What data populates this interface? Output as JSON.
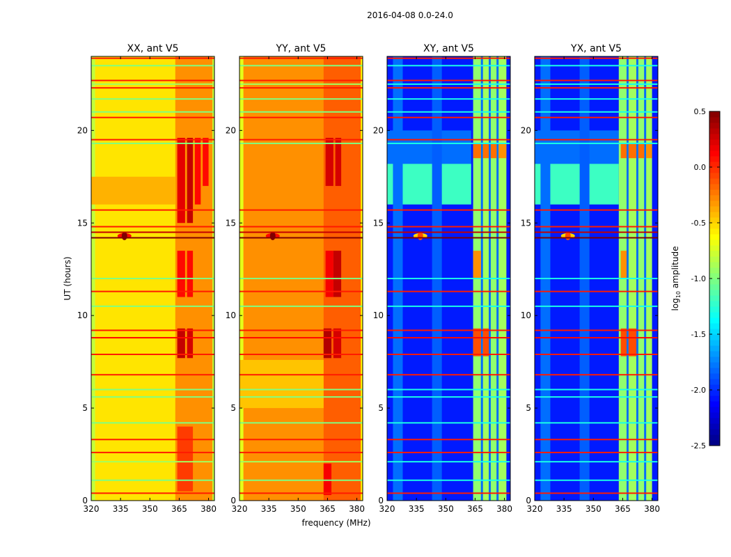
{
  "chart_data": {
    "type": "heatmap",
    "suptitle": "2016-04-08 0.0-24.0",
    "xlabel": "frequency (MHz)",
    "ylabel": "UT (hours)",
    "xlim": [
      320,
      383
    ],
    "ylim": [
      0,
      24
    ],
    "xticks": [
      320,
      335,
      350,
      365,
      380
    ],
    "yticks": [
      0,
      5,
      10,
      15,
      20
    ],
    "colorbar": {
      "label": "log10 amplitude",
      "label_main": "log",
      "label_sub": "10",
      "label_rest": " amplitude",
      "range": [
        -2.5,
        0.5
      ],
      "ticks": [
        "0.5",
        "0.0",
        "-0.5",
        "-1.0",
        "-1.5",
        "-2.0",
        "-2.5"
      ],
      "tick_values": [
        0.5,
        0.0,
        -0.5,
        -1.0,
        -1.5,
        -2.0,
        -2.5
      ],
      "colormap": "jet"
    },
    "panels": [
      {
        "title": "XX, ant V5",
        "base": -0.55,
        "patches": [
          [
            320,
            322,
            0,
            24,
            -0.8
          ],
          [
            381,
            383,
            0,
            24,
            -0.8
          ],
          [
            363,
            382,
            0,
            24,
            -0.3
          ],
          [
            364,
            368,
            7.7,
            9.3,
            0.3
          ],
          [
            369,
            372,
            7.7,
            9.3,
            0.25
          ],
          [
            364,
            368,
            11,
            13.5,
            0.1
          ],
          [
            369,
            372,
            11,
            13.5,
            0.1
          ],
          [
            364,
            368,
            15,
            19.6,
            0.2
          ],
          [
            369,
            372,
            15,
            19.6,
            0.3
          ],
          [
            373,
            376,
            16,
            19.6,
            0.1
          ],
          [
            377,
            380,
            17,
            19.6,
            0.1
          ],
          [
            320,
            363,
            16,
            17.5,
            -0.4
          ],
          [
            364,
            372,
            0.5,
            4,
            -0.05
          ]
        ],
        "blob": [
          337,
          14.3,
          0.5
        ]
      },
      {
        "title": "YY, ant V5",
        "base": -0.3,
        "patches": [
          [
            320,
            322,
            0,
            24,
            -0.7
          ],
          [
            381,
            383,
            0,
            24,
            -0.6
          ],
          [
            363,
            382,
            0,
            24,
            -0.15
          ],
          [
            363,
            367,
            7.7,
            9.3,
            0.35
          ],
          [
            368,
            372,
            7.7,
            9.3,
            0.25
          ],
          [
            364,
            368,
            11,
            13.5,
            0.15
          ],
          [
            368,
            372,
            11,
            13.5,
            0.3
          ],
          [
            364,
            368,
            17,
            19.6,
            0.25
          ],
          [
            369,
            372,
            17,
            19.6,
            0.25
          ],
          [
            363,
            367,
            0.3,
            2,
            0.15
          ],
          [
            320,
            363,
            5,
            7.6,
            -0.45
          ]
        ],
        "blob": [
          337,
          14.3,
          0.5
        ]
      },
      {
        "title": "XY, ant V5",
        "base": -2.05,
        "patches": [
          [
            320,
            363,
            16,
            18.2,
            -1.2
          ],
          [
            320,
            363,
            18.2,
            20,
            -1.8
          ],
          [
            364,
            368,
            0,
            24,
            -0.95
          ],
          [
            368,
            369,
            0,
            24,
            -1.8
          ],
          [
            369,
            372,
            0,
            24,
            -0.9
          ],
          [
            372,
            373,
            0,
            24,
            -1.8
          ],
          [
            373,
            376,
            0,
            24,
            -0.95
          ],
          [
            376,
            377,
            0,
            24,
            -1.8
          ],
          [
            377,
            381,
            0,
            24,
            -0.9
          ],
          [
            364,
            368,
            7.8,
            9.3,
            -0.1
          ],
          [
            369,
            372,
            7.8,
            9.3,
            -0.1
          ],
          [
            364,
            368,
            12,
            13.5,
            -0.3
          ],
          [
            364,
            368,
            18.5,
            19.3,
            -0.2
          ],
          [
            369,
            372,
            18.5,
            19.3,
            -0.2
          ],
          [
            373,
            376,
            18.5,
            19.3,
            -0.2
          ],
          [
            377,
            381,
            18.5,
            19.3,
            -0.3
          ],
          [
            323,
            328,
            0,
            24,
            -1.8
          ],
          [
            343,
            348,
            0,
            24,
            -1.85
          ]
        ],
        "blob": [
          337,
          14.3,
          -0.1
        ]
      },
      {
        "title": "YX, ant V5",
        "base": -2.05,
        "patches": [
          [
            320,
            363,
            16,
            18.2,
            -1.2
          ],
          [
            320,
            363,
            18.2,
            20,
            -1.8
          ],
          [
            363,
            367,
            0,
            24,
            -0.95
          ],
          [
            367,
            368,
            0,
            24,
            -1.8
          ],
          [
            368,
            372,
            0,
            24,
            -0.9
          ],
          [
            372,
            373,
            0,
            24,
            -1.8
          ],
          [
            373,
            376,
            0,
            24,
            -0.95
          ],
          [
            376,
            377,
            0,
            24,
            -1.8
          ],
          [
            377,
            380,
            0,
            24,
            -0.9
          ],
          [
            364,
            367,
            7.8,
            9.3,
            -0.1
          ],
          [
            368,
            372,
            7.8,
            9.3,
            -0.1
          ],
          [
            364,
            367,
            12,
            13.5,
            -0.3
          ],
          [
            364,
            367,
            18.5,
            19.3,
            -0.2
          ],
          [
            368,
            372,
            18.5,
            19.3,
            -0.2
          ],
          [
            373,
            376,
            18.5,
            19.3,
            -0.2
          ],
          [
            377,
            380,
            18.5,
            19.3,
            -0.3
          ],
          [
            323,
            328,
            0,
            24,
            -1.8
          ],
          [
            343,
            348,
            0,
            24,
            -1.85
          ]
        ],
        "blob": [
          337,
          14.3,
          -0.1
        ]
      }
    ],
    "rfi_lines": [
      [
        0.4,
        0.05
      ],
      [
        1.1,
        -1.0
      ],
      [
        2.1,
        -0.9
      ],
      [
        2.6,
        0.05
      ],
      [
        3.3,
        0.05
      ],
      [
        4.2,
        -1.0
      ],
      [
        5.6,
        -1.0
      ],
      [
        6.0,
        -1.0
      ],
      [
        6.8,
        0.05
      ],
      [
        7.9,
        0.05
      ],
      [
        8.8,
        0.1
      ],
      [
        9.2,
        0.05
      ],
      [
        10.5,
        -1.0
      ],
      [
        11.3,
        0.05
      ],
      [
        12.0,
        -1.0
      ],
      [
        14.2,
        0.5
      ],
      [
        14.5,
        0.3
      ],
      [
        14.8,
        0.05
      ],
      [
        15.7,
        0.05
      ],
      [
        19.3,
        -1.0
      ],
      [
        19.5,
        0.05
      ],
      [
        20.7,
        0.05
      ],
      [
        21.0,
        -1.0
      ],
      [
        21.7,
        -1.0
      ],
      [
        22.3,
        0.05
      ],
      [
        22.5,
        -0.9
      ],
      [
        22.7,
        0.05
      ],
      [
        23.5,
        -1.0
      ],
      [
        23.9,
        0.05
      ]
    ]
  }
}
